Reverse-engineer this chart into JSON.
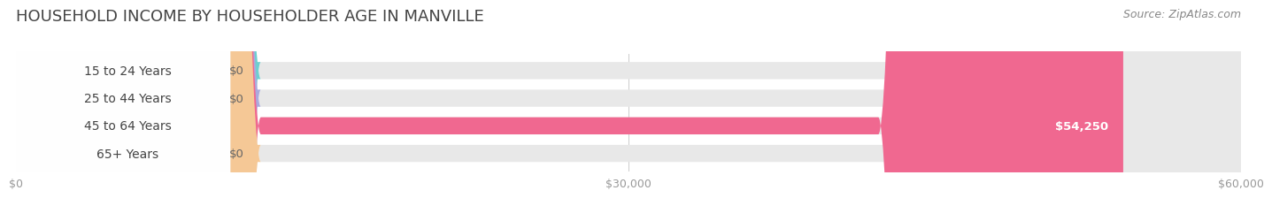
{
  "title": "HOUSEHOLD INCOME BY HOUSEHOLDER AGE IN MANVILLE",
  "source": "Source: ZipAtlas.com",
  "categories": [
    "15 to 24 Years",
    "25 to 44 Years",
    "45 to 64 Years",
    "65+ Years"
  ],
  "values": [
    0,
    0,
    54250,
    0
  ],
  "bar_colors": [
    "#6ecfcf",
    "#aaaadd",
    "#f06890",
    "#f5c896"
  ],
  "value_labels": [
    "$0",
    "$0",
    "$54,250",
    "$0"
  ],
  "xlim": [
    0,
    60000
  ],
  "xticks": [
    0,
    30000,
    60000
  ],
  "xticklabels": [
    "$0",
    "$30,000",
    "$60,000"
  ],
  "background_color": "#ffffff",
  "bar_bg_color": "#e8e8e8",
  "title_fontsize": 13,
  "source_fontsize": 9,
  "label_fontsize": 10,
  "value_fontsize": 9.5
}
